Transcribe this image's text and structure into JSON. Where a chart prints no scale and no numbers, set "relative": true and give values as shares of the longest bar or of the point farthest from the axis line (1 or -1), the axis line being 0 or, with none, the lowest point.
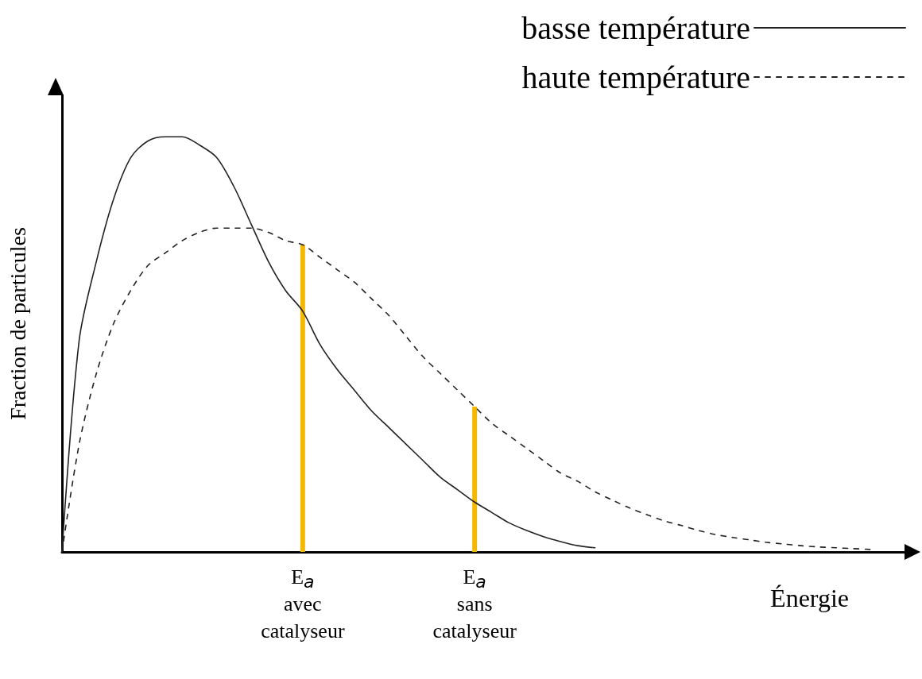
{
  "chart_data": {
    "type": "line",
    "relative": true,
    "ylabel": "Fraction de particules",
    "xlabel": "Énergie",
    "legend": "top right",
    "marker": "none",
    "grid": false,
    "categories": [
      null,
      null,
      null,
      null,
      null,
      null,
      null,
      null,
      null,
      null,
      null,
      null,
      null,
      null,
      "E$_{a}$\navec\ncatalyseur",
      null,
      null,
      null,
      null,
      null,
      null,
      null,
      null,
      null,
      "E$_{a}$\nsans\ncatalyseur",
      null,
      null,
      null,
      null,
      null,
      null,
      null,
      null,
      null,
      null,
      null,
      null,
      null,
      null,
      null,
      null,
      null,
      null,
      null,
      null,
      null,
      null,
      null,
      null,
      null
    ],
    "series": [
      {
        "name": "basse température",
        "line_style": "solid",
        "color": "#222222",
        "values": [
          0,
          0.51,
          0.7,
          0.85,
          0.95,
          0.99,
          1.0,
          1.0,
          0.98,
          0.95,
          0.88,
          0.79,
          0.7,
          0.63,
          0.58,
          0.5,
          0.44,
          0.39,
          0.34,
          0.3,
          0.26,
          0.22,
          0.18,
          0.15,
          0.12,
          0.095,
          0.07,
          0.052,
          0.037,
          0.025,
          0.015,
          0.01,
          null,
          null,
          null,
          null,
          null,
          null,
          null,
          null,
          null,
          null,
          null,
          null,
          null,
          null,
          null,
          null,
          null,
          null
        ]
      },
      {
        "name": "haute température",
        "line_style": "dashed",
        "color": "#222222",
        "values": [
          0,
          0.26,
          0.43,
          0.55,
          0.63,
          0.69,
          0.72,
          0.75,
          0.77,
          0.78,
          0.78,
          0.78,
          0.77,
          0.75,
          0.74,
          0.71,
          0.68,
          0.65,
          0.61,
          0.57,
          0.52,
          0.47,
          0.43,
          0.39,
          0.35,
          0.31,
          0.28,
          0.25,
          0.22,
          0.19,
          0.17,
          0.145,
          0.125,
          0.106,
          0.09,
          0.075,
          0.064,
          0.052,
          0.042,
          0.035,
          0.029,
          0.023,
          0.019,
          0.015,
          0.012,
          0.01,
          0.008,
          0.006,
          null,
          null
        ]
      },
      {
        "type": "bar",
        "color": "#f5b800",
        "values": [
          null,
          null,
          null,
          null,
          null,
          null,
          null,
          null,
          null,
          null,
          null,
          null,
          null,
          null,
          0.74,
          null,
          null,
          null,
          null,
          null,
          null,
          null,
          null,
          null,
          0.35,
          null,
          null,
          null,
          null,
          null,
          null,
          null,
          null,
          null,
          null,
          null,
          null,
          null,
          null,
          null,
          null,
          null,
          null,
          null,
          null,
          null,
          null,
          null,
          null,
          null
        ]
      }
    ]
  }
}
